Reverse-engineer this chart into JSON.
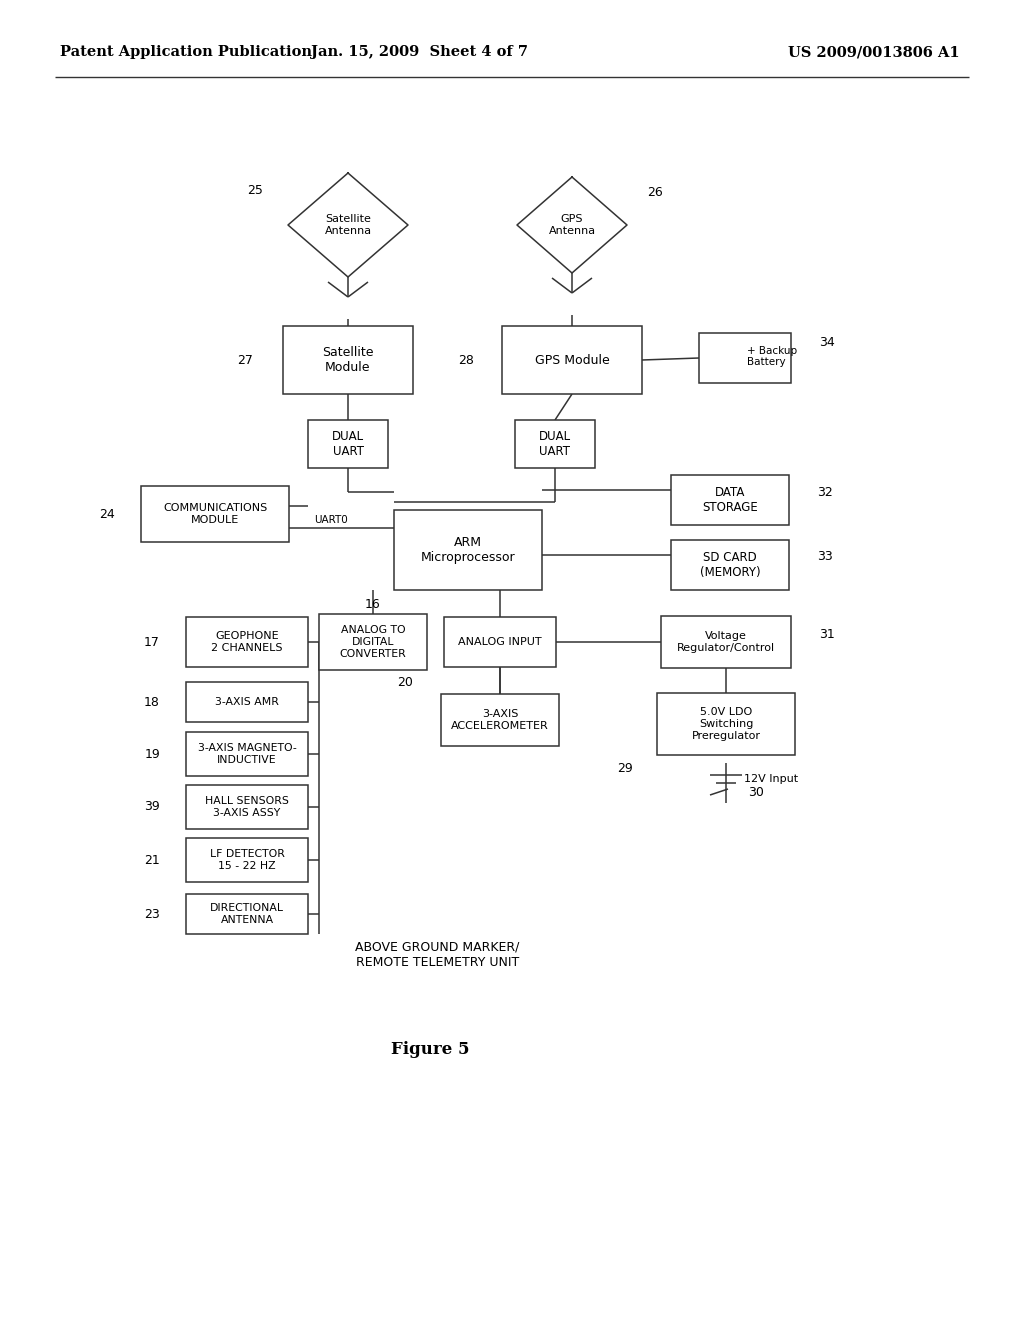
{
  "bg_color": "#ffffff",
  "header_left": "Patent Application Publication",
  "header_mid": "Jan. 15, 2009  Sheet 4 of 7",
  "header_right": "US 2009/0013806 A1",
  "figure_label": "Figure 5"
}
